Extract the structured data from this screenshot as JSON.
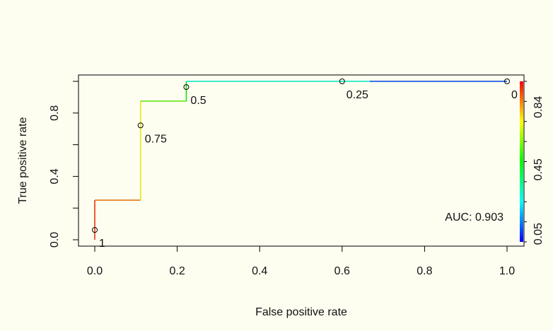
{
  "chart_data": {
    "type": "line",
    "title": "",
    "xlabel": "False positive rate",
    "ylabel": "True positive rate",
    "xlim": [
      0,
      1
    ],
    "ylim": [
      0,
      1
    ],
    "x_ticks": [
      "0.0",
      "0.2",
      "0.4",
      "0.6",
      "0.8",
      "1.0"
    ],
    "y_ticks": [
      "0.0",
      "0.4",
      "0.8"
    ],
    "grid": false,
    "roc_curve": [
      {
        "x": 0.0,
        "y": 0.0,
        "cutoff": 1.0
      },
      {
        "x": 0.0,
        "y": 0.25,
        "cutoff": 0.92
      },
      {
        "x": 0.111,
        "y": 0.25,
        "cutoff": 0.85
      },
      {
        "x": 0.111,
        "y": 0.875,
        "cutoff": 0.65
      },
      {
        "x": 0.222,
        "y": 0.875,
        "cutoff": 0.55
      },
      {
        "x": 0.222,
        "y": 1.0,
        "cutoff": 0.45
      },
      {
        "x": 0.667,
        "y": 1.0,
        "cutoff": 0.14
      },
      {
        "x": 1.0,
        "y": 1.0,
        "cutoff": 0.0
      }
    ],
    "cutoff_points": [
      {
        "label": "1",
        "x": 0.0,
        "y": 0.062
      },
      {
        "label": "0.75",
        "x": 0.111,
        "y": 0.722
      },
      {
        "label": "0.5",
        "x": 0.222,
        "y": 0.964
      },
      {
        "label": "0.25",
        "x": 0.6,
        "y": 1.0
      },
      {
        "label": "0",
        "x": 1.0,
        "y": 1.0
      }
    ],
    "colorbar": {
      "ticks": [
        "0.05",
        "0.45",
        "0.84"
      ],
      "colors": [
        "#ff0000",
        "#ff8000",
        "#ffff00",
        "#80ff00",
        "#00ff00",
        "#00ff80",
        "#00ffff",
        "#0080ff",
        "#0000ff"
      ]
    },
    "annotation": "AUC: 0.903"
  }
}
